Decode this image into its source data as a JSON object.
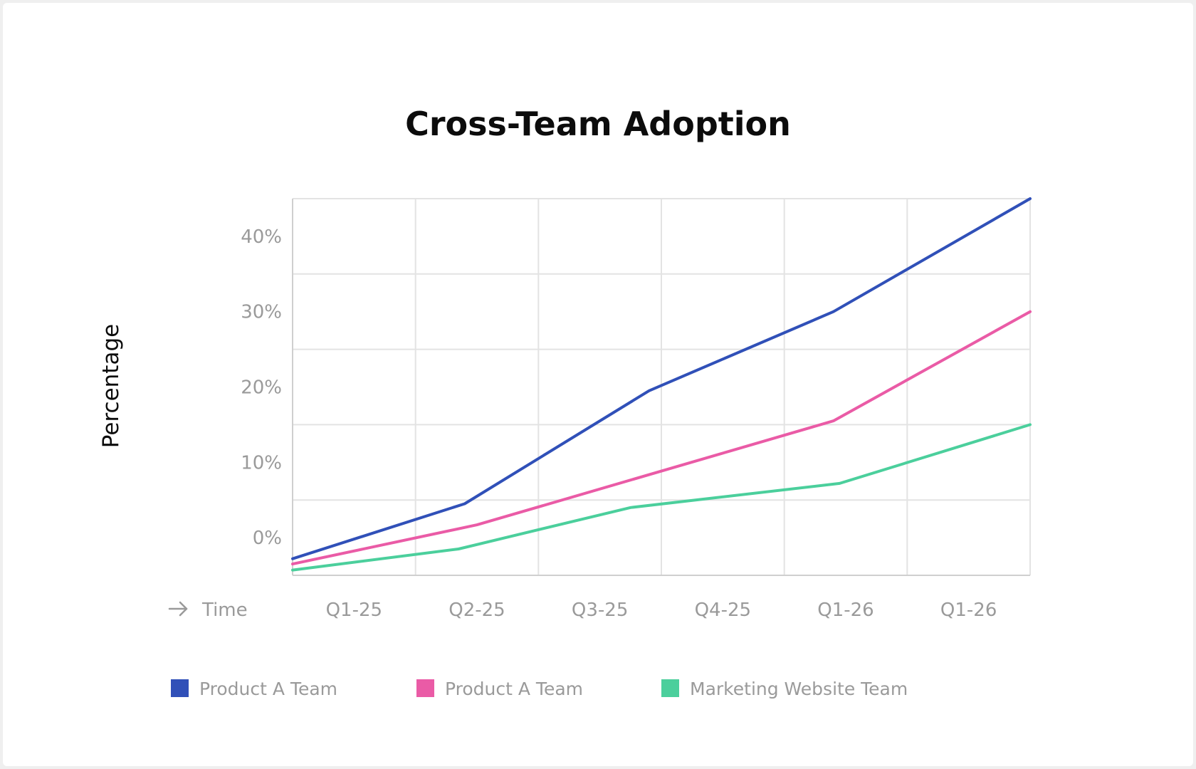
{
  "chart_data": {
    "type": "line",
    "title": "Cross-Team Adoption",
    "ylabel": "Percentage",
    "xlabel": "Time",
    "xlabel_icon": "arrow-right-icon",
    "categories": [
      "Q1-25",
      "Q2-25",
      "Q3-25",
      "Q4-25",
      "Q1-26",
      "Q1-26"
    ],
    "ylim": [
      -5,
      45
    ],
    "yticks": [
      0,
      10,
      20,
      30,
      40
    ],
    "ytick_labels": [
      "0%",
      "10%",
      "20%",
      "30%",
      "40%"
    ],
    "grid": true,
    "legend_position": "bottom",
    "series": [
      {
        "name": "Product A Team",
        "color": "#3050b8",
        "points": [
          [
            0,
            -2.8
          ],
          [
            1.4,
            4.5
          ],
          [
            2.9,
            19.5
          ],
          [
            4.4,
            30.0
          ],
          [
            6,
            45
          ]
        ]
      },
      {
        "name": "Product A Team",
        "color": "#ea5ba6",
        "points": [
          [
            0,
            -3.5
          ],
          [
            1.5,
            1.7
          ],
          [
            4.4,
            15.5
          ],
          [
            6,
            30
          ]
        ]
      },
      {
        "name": "Marketing Website Team",
        "color": "#4bcf9c",
        "points": [
          [
            0,
            -4.3
          ],
          [
            1.35,
            -1.5
          ],
          [
            2.75,
            4.0
          ],
          [
            4.45,
            7.2
          ],
          [
            6,
            15
          ]
        ]
      }
    ]
  }
}
